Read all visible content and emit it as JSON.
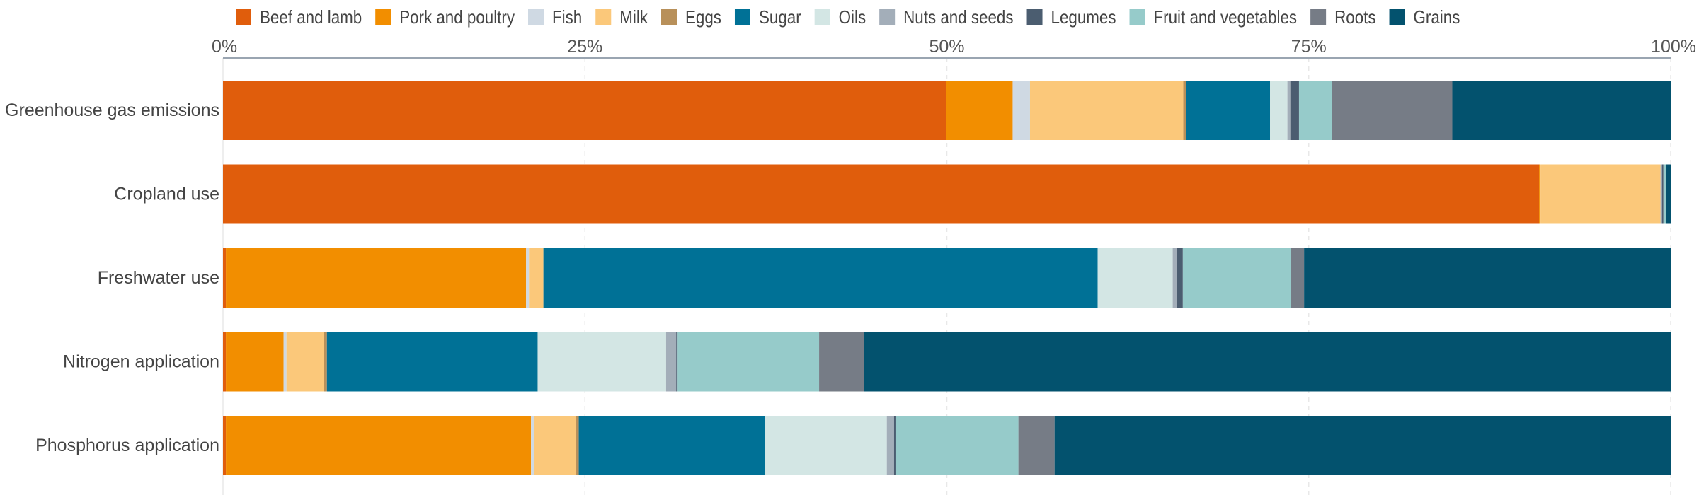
{
  "chart_data": {
    "type": "bar",
    "orientation": "horizontal",
    "stacked": true,
    "normalized": true,
    "title": "",
    "xlabel": "",
    "ylabel": "",
    "xlim": [
      0,
      100
    ],
    "x_ticks": [
      "0%",
      "25%",
      "50%",
      "75%",
      "100%"
    ],
    "x_tick_values": [
      0,
      25,
      50,
      75,
      100
    ],
    "grid": true,
    "legend_position": "top",
    "categories": [
      "Greenhouse gas emissions",
      "Cropland use",
      "Freshwater use",
      "Nitrogen application",
      "Phosphorus application"
    ],
    "series": [
      {
        "name": "Beef and lamb",
        "color": "#e05d0c",
        "values": [
          50.0,
          91.0,
          0.2,
          0.2,
          0.2
        ]
      },
      {
        "name": "Pork and poultry",
        "color": "#f28e00",
        "values": [
          4.6,
          0.1,
          20.8,
          4.0,
          21.1
        ]
      },
      {
        "name": "Fish",
        "color": "#cfd9e3",
        "values": [
          1.2,
          0.0,
          0.2,
          0.2,
          0.2
        ]
      },
      {
        "name": "Milk",
        "color": "#fbc87a",
        "values": [
          10.6,
          8.3,
          1.0,
          2.6,
          2.9
        ]
      },
      {
        "name": "Eggs",
        "color": "#b8905a",
        "values": [
          0.2,
          0.0,
          0.0,
          0.2,
          0.2
        ]
      },
      {
        "name": "Sugar",
        "color": "#007196",
        "values": [
          5.8,
          0.0,
          38.4,
          14.6,
          12.9
        ]
      },
      {
        "name": "Oils",
        "color": "#d3e6e4",
        "values": [
          1.2,
          0.0,
          5.2,
          8.9,
          8.4
        ]
      },
      {
        "name": "Nuts and seeds",
        "color": "#a3aeb9",
        "values": [
          0.2,
          0.1,
          0.3,
          0.7,
          0.5
        ]
      },
      {
        "name": "Legumes",
        "color": "#4b5d70",
        "values": [
          0.6,
          0.1,
          0.4,
          0.1,
          0.1
        ]
      },
      {
        "name": "Fruit and vegetables",
        "color": "#96cbca",
        "values": [
          2.3,
          0.2,
          7.5,
          9.8,
          8.5
        ]
      },
      {
        "name": "Roots",
        "color": "#767c86",
        "values": [
          8.3,
          0.0,
          0.9,
          3.1,
          2.5
        ]
      },
      {
        "name": "Grains",
        "color": "#03526e",
        "values": [
          15.1,
          0.3,
          25.4,
          55.9,
          42.6
        ]
      }
    ]
  }
}
